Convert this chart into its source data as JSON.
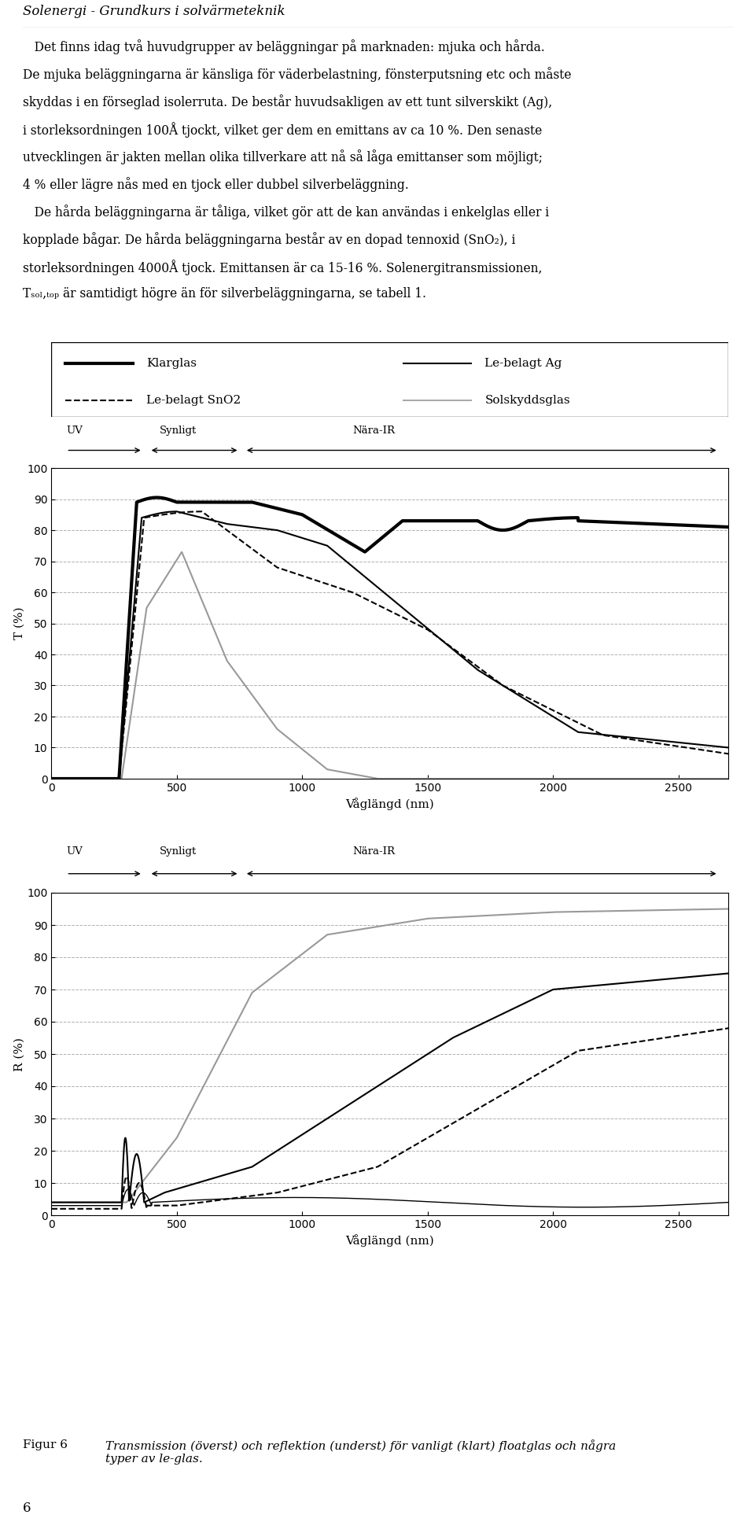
{
  "title": "Solenergi - Grundkurs i solvärmeteknik",
  "body_text": [
    "   Det finns idag två huvudgrupper av beläggningar på marknaden: mjuka och hårda.",
    "De mjuka beläggningarna är känsliga för väderbelastning, fönsterputsning etc och måste",
    "skyddas i en förseglad isolerruta. De består huvudsakligen av ett tunt silverskikt (Ag),",
    "i storleksordningen 100Å tjockt, vilket ger dem en emittans av ca 10 %. Den senaste",
    "utvecklingen är jakten mellan olika tillverkare att nå så låga emittanser som möjligt;",
    "4 % eller lägre nås med en tjock eller dubbel silverbeläggning.",
    "   De hårda beläggningarna är tåliga, vilket gör att de kan användas i enkelglas eller i",
    "kopplade bågar. De hårda beläggningarna består av en dopad tennoxid (SnO₂), i",
    "storleksordningen 4000Å tjock. Emittansen är ca 15-16 %. Solenergitransmissionen,",
    "Tₛₒₗ,ₜₒₚ är samtidigt högre än för silverbeläggningarna, se tabell 1."
  ],
  "xlabel": "Våglängd (nm)",
  "t_ylabel": "T (%)",
  "r_ylabel": "R (%)",
  "xticks": [
    0,
    500,
    1000,
    1500,
    2000,
    2500
  ],
  "yticks": [
    0,
    10,
    20,
    30,
    40,
    50,
    60,
    70,
    80,
    90,
    100
  ],
  "caption_label": "Figur 6",
  "caption_text": "Transmission (överst) och reflektion (underst) för vanligt (klart) floatglas och några\ntyper av le-glas.",
  "page_number": "6",
  "background": "#ffffff"
}
